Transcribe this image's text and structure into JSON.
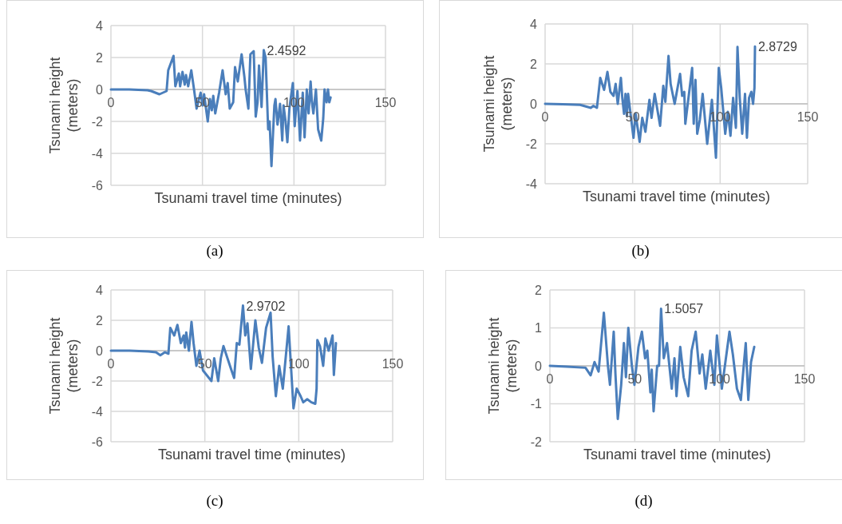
{
  "chart_data": [
    {
      "type": "line",
      "xlabel": "Tsunami travel time (minutes)",
      "ylabel": "Tsunami height (meters)",
      "xlim": [
        0,
        150
      ],
      "xticks": [
        0,
        50,
        100,
        150
      ],
      "ylim": [
        -6,
        4
      ],
      "yticks": [
        -6,
        -4,
        -2,
        0,
        2,
        4
      ],
      "grid": true,
      "series": [
        {
          "color": "#4a7ebb",
          "x": [
            0,
            10,
            20,
            22,
            26.5,
            30.4,
            31.3,
            34.2,
            35.2,
            37.1,
            37.8,
            39.1,
            40.3,
            41,
            42.2,
            43.9,
            45.4,
            46.8,
            49,
            50.1,
            50.9,
            52.9,
            54.1,
            55.1,
            55.9,
            57,
            59.1,
            61,
            62.7,
            63.8,
            64.9,
            66.8,
            67.8,
            69.3,
            71.4,
            72.9,
            73.6,
            75.1,
            76.2,
            78,
            79.1,
            80.1,
            80.9,
            82.3,
            83.5,
            84.5,
            85.9,
            86.7,
            87.7,
            89.3,
            89.9,
            91,
            92.4,
            93.6,
            94.3,
            95.4,
            96.4,
            97.5,
            98.3,
            99.4,
            100.4,
            101.9,
            103.3,
            104.8,
            105.8,
            107,
            108,
            109.1,
            109.8,
            110.6,
            112,
            113.2,
            114.9,
            116,
            116.7,
            117.8,
            118.6,
            119.3,
            120
          ],
          "values": [
            0,
            0,
            -0.05,
            -0.1,
            -0.3,
            -0.1,
            1.2,
            2.1,
            0.2,
            1.0,
            0.2,
            1.1,
            0.3,
            0.9,
            0.2,
            1.2,
            0.0,
            -1.2,
            -0.2,
            -1.0,
            -0.3,
            -2.0,
            -0.6,
            -1.3,
            -0.4,
            -1.5,
            -0.2,
            1.2,
            -0.3,
            0.4,
            -1.2,
            -0.8,
            1.4,
            0.5,
            2.2,
            0.8,
            0.0,
            -1.2,
            2.2,
            2.4,
            -1.7,
            -0.8,
            1.5,
            -1.1,
            2.4592,
            2.0,
            -2.5,
            -2.0,
            -4.8,
            -1.0,
            -0.6,
            -2.2,
            -0.9,
            -3.2,
            -1.0,
            -2.0,
            -3.3,
            -1.2,
            -0.5,
            0.4,
            -2.3,
            -0.1,
            -3.2,
            -0.2,
            -3.0,
            0.0,
            -1.5,
            0.5,
            -0.8,
            -1.5,
            0.0,
            -2.5,
            -3.2,
            -1.8,
            0.0,
            -0.8,
            0.0,
            -0.8,
            -0.5
          ]
        }
      ],
      "annotations": [
        {
          "text": "2.4592",
          "x": 83.5,
          "y": 2.4592
        },
        "(a)"
      ]
    },
    {
      "type": "line",
      "xlabel": "Tsunami travel time (minutes)",
      "ylabel": "Tsunami height (meters)",
      "xlim": [
        0,
        150
      ],
      "xticks": [
        0,
        50,
        100,
        150
      ],
      "ylim": [
        -4,
        4
      ],
      "yticks": [
        -4,
        -2,
        0,
        2,
        4
      ],
      "grid": true,
      "series": [
        {
          "color": "#4a7ebb",
          "x": [
            0,
            10,
            20,
            26.1,
            27.6,
            29.6,
            31.5,
            33.7,
            35.6,
            37.3,
            39.1,
            40.3,
            41.5,
            43.3,
            44.1,
            45.1,
            45.9,
            46.7,
            47.4,
            50.5,
            51.7,
            54,
            55.5,
            57.3,
            59.6,
            60.8,
            62.6,
            65.7,
            67.5,
            68.7,
            70.5,
            71.7,
            74,
            77.1,
            78.3,
            79.5,
            80.1,
            84,
            84.9,
            85.9,
            86.9,
            88.4,
            90,
            92.6,
            95.3,
            97.6,
            99.2,
            100.6,
            102.9,
            104.4,
            105.9,
            107.4,
            109,
            109.9,
            111.2,
            112.6,
            114.2,
            115.3,
            116.5,
            117.8,
            118.8,
            119.6,
            119.9
          ],
          "values": [
            0,
            -0.02,
            -0.05,
            -0.2,
            -0.1,
            -0.2,
            1.3,
            0.7,
            1.6,
            0.6,
            0.4,
            1.0,
            0.0,
            1.3,
            0.3,
            -0.5,
            0.5,
            -0.6,
            0.5,
            -1.7,
            -0.5,
            -1.9,
            -0.7,
            -1.4,
            0.2,
            -0.7,
            0.5,
            -1.1,
            0.9,
            0.1,
            2.4,
            1.0,
            0.0,
            1.5,
            0.4,
            0.6,
            -1.0,
            1.8,
            -1.0,
            1.2,
            -1.5,
            -0.8,
            0.5,
            -2.0,
            0.2,
            -2.7,
            1.8,
            0.8,
            -1.5,
            -0.4,
            -1.6,
            0.3,
            -1.2,
            2.85,
            0.3,
            -1.5,
            0.5,
            -1.7,
            0.3,
            0.6,
            0.0,
            0.8,
            2.8729
          ]
        }
      ],
      "annotations": [
        {
          "text": "2.8729",
          "x": 119.9,
          "y": 2.8729
        },
        "(b)"
      ]
    },
    {
      "type": "line",
      "xlabel": "Tsunami travel time (minutes)",
      "ylabel": "Tsunami height (meters)",
      "xlim": [
        0,
        150
      ],
      "xticks": [
        0,
        50,
        100,
        150
      ],
      "ylim": [
        -6,
        4
      ],
      "yticks": [
        -6,
        -4,
        -2,
        0,
        2,
        4
      ],
      "grid": true,
      "series": [
        {
          "color": "#4a7ebb",
          "x": [
            0,
            10,
            20,
            24,
            26.3,
            28.7,
            30.6,
            31.6,
            33.7,
            35.4,
            37.2,
            38.7,
            39.4,
            40.1,
            41.5,
            42.9,
            44,
            45.5,
            47.2,
            49,
            53.5,
            55,
            57.1,
            58.5,
            59.9,
            64.2,
            65.6,
            67,
            68.4,
            70.3,
            71.5,
            72.7,
            74.5,
            76.9,
            78.7,
            80.4,
            82.6,
            85,
            86.1,
            87.8,
            89.6,
            91.5,
            94.6,
            97.2,
            98.9,
            101,
            102.4,
            104.5,
            106.7,
            108.8,
            109.5,
            109.9,
            111.3,
            113,
            114.2,
            115.9,
            118,
            118.7,
            119.8
          ],
          "values": [
            0,
            0,
            -0.05,
            -0.1,
            -0.3,
            -0.1,
            -0.2,
            1.5,
            1.0,
            1.7,
            0.5,
            1.0,
            0.2,
            1.2,
            0.0,
            1.9,
            0.5,
            -1.0,
            0.0,
            -1.3,
            -2.0,
            -0.5,
            -2.0,
            -0.5,
            0.3,
            -1.3,
            -1.8,
            0.5,
            0.4,
            2.9702,
            1.0,
            1.8,
            -1.2,
            2.0,
            0.2,
            -0.8,
            1.5,
            2.5,
            -0.4,
            -3.0,
            -1.0,
            -2.5,
            1.6,
            -3.8,
            -2.5,
            -3.0,
            -3.4,
            -3.2,
            -3.4,
            -3.5,
            -2.5,
            0.7,
            0.3,
            -1.0,
            0.8,
            0.0,
            1.0,
            -1.6,
            0.5
          ]
        }
      ],
      "annotations": [
        {
          "text": "2.9702",
          "x": 70.3,
          "y": 2.9702
        },
        "(c)"
      ]
    },
    {
      "type": "line",
      "xlabel": "Tsunami travel time (minutes)",
      "ylabel": "Tsunami height (meters)",
      "xlim": [
        0,
        150
      ],
      "xticks": [
        0,
        50,
        100,
        150
      ],
      "ylim": [
        -2,
        2
      ],
      "yticks": [
        -2,
        -1,
        0,
        1,
        2
      ],
      "grid": true,
      "series": [
        {
          "color": "#4a7ebb",
          "x": [
            0,
            10,
            21,
            24,
            26.3,
            28.7,
            31.8,
            34.2,
            35.4,
            37.6,
            38.6,
            40,
            42,
            43.6,
            44.8,
            46.2,
            48.3,
            49.8,
            52.2,
            54.2,
            56.1,
            57.4,
            59.2,
            60,
            61.1,
            63.2,
            64.3,
            65.5,
            67.1,
            69,
            71.8,
            73.4,
            74.6,
            76.8,
            78.8,
            81.5,
            83.5,
            85.9,
            88.2,
            89.8,
            91.8,
            94.5,
            96.9,
            98.4,
            101.3,
            105.8,
            107.8,
            110.2,
            112.5,
            114.4,
            115.4,
            116.9,
            118.5,
            120.4
          ],
          "values": [
            0,
            -0.02,
            -0.05,
            -0.25,
            0.1,
            -0.15,
            1.4,
            0.0,
            -0.5,
            0.9,
            -0.2,
            -1.4,
            -0.5,
            0.6,
            -0.3,
            1.0,
            0.0,
            -0.5,
            0.5,
            0.9,
            0.2,
            0.4,
            -0.7,
            -0.1,
            -1.2,
            0.0,
            0.0,
            1.5057,
            0.2,
            0.6,
            -0.6,
            0.2,
            -0.8,
            0.5,
            -0.3,
            -0.8,
            0.4,
            0.9,
            -0.2,
            0.3,
            -0.6,
            0.4,
            -0.5,
            0.8,
            -0.6,
            0.9,
            0.3,
            -0.6,
            -0.9,
            0.1,
            0.6,
            -0.9,
            0.1,
            0.5
          ]
        }
      ],
      "annotations": [
        {
          "text": "1.5057",
          "x": 65.5,
          "y": 1.5057
        },
        "(d)"
      ]
    }
  ]
}
